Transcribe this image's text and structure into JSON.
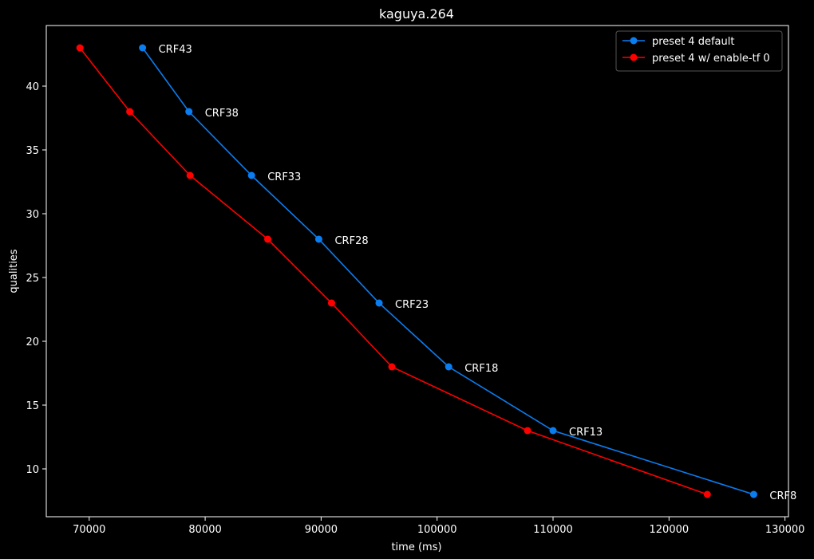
{
  "chart_data": {
    "type": "line",
    "title": "kaguya.264",
    "xlabel": "time (ms)",
    "ylabel": "qualities",
    "xlim": [
      66300,
      130300
    ],
    "ylim": [
      6.25,
      44.75
    ],
    "xticks": [
      70000,
      80000,
      90000,
      100000,
      110000,
      120000,
      130000
    ],
    "yticks": [
      10,
      15,
      20,
      25,
      30,
      35,
      40
    ],
    "legend_position": "top-right",
    "series": [
      {
        "name": "preset 4 default",
        "color": "#0a7df0",
        "x": [
          74600,
          78600,
          84000,
          89800,
          95000,
          101000,
          110000,
          127300
        ],
        "y": [
          43,
          38,
          33,
          28,
          23,
          18,
          13,
          8
        ],
        "point_labels": [
          "CRF43",
          "CRF38",
          "CRF33",
          "CRF28",
          "CRF23",
          "CRF18",
          "CRF13",
          "CRF8"
        ]
      },
      {
        "name": "preset 4 w/ enable-tf 0",
        "color": "#ff0000",
        "x": [
          69200,
          73500,
          78700,
          85400,
          90900,
          96100,
          107800,
          123300
        ],
        "y": [
          43,
          38,
          33,
          28,
          23,
          18,
          13,
          8
        ]
      }
    ]
  }
}
